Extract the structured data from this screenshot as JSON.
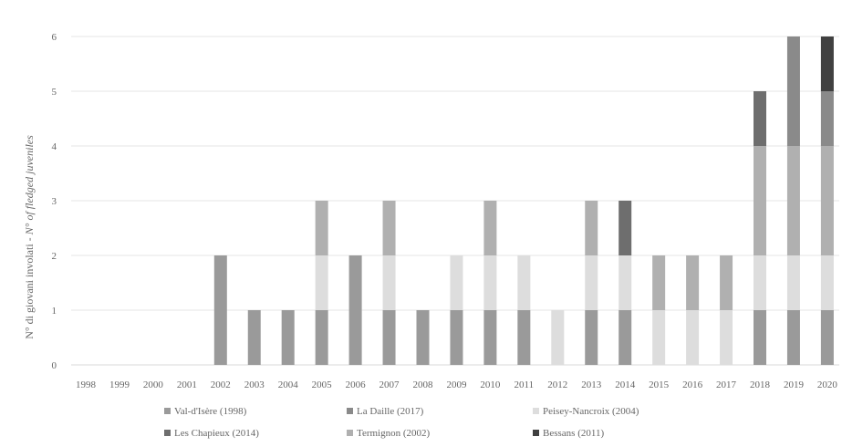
{
  "chart_data": {
    "type": "bar",
    "stacked": true,
    "ylabel_main": "N° di giovani involati - ",
    "ylabel_italic": "N° of fledged juveniles",
    "ylim": [
      0,
      6
    ],
    "yticks": [
      "0",
      "1",
      "2",
      "3",
      "4",
      "5",
      "6"
    ],
    "grid": true,
    "legend_position": "bottom",
    "categories": [
      "1998",
      "1999",
      "2000",
      "2001",
      "2002",
      "2003",
      "2004",
      "2005",
      "2006",
      "2007",
      "2008",
      "2009",
      "2010",
      "2011",
      "2012",
      "2013",
      "2014",
      "2015",
      "2016",
      "2017",
      "2018",
      "2019",
      "2020"
    ],
    "series": [
      {
        "name": "Val-d'Isère (1998)",
        "color": "#9a9a9a",
        "values": [
          0,
          0,
          0,
          0,
          2,
          1,
          1,
          1,
          2,
          1,
          1,
          1,
          1,
          1,
          0,
          1,
          1,
          0,
          0,
          0,
          1,
          1,
          1
        ]
      },
      {
        "name": "Peisey-Nancroix (2004)",
        "color": "#dddddd",
        "values": [
          0,
          0,
          0,
          0,
          0,
          0,
          0,
          1,
          0,
          1,
          0,
          1,
          1,
          1,
          1,
          1,
          1,
          1,
          1,
          1,
          1,
          1,
          1
        ]
      },
      {
        "name": "Termignon (2002)",
        "color": "#b0b0b0",
        "values": [
          0,
          0,
          0,
          0,
          0,
          0,
          0,
          1,
          0,
          1,
          0,
          0,
          1,
          0,
          0,
          1,
          0,
          1,
          1,
          1,
          2,
          2,
          2
        ]
      },
      {
        "name": "La Daille (2017)",
        "color": "#8a8a8a",
        "values": [
          0,
          0,
          0,
          0,
          0,
          0,
          0,
          0,
          0,
          0,
          0,
          0,
          0,
          0,
          0,
          0,
          0,
          0,
          0,
          0,
          0,
          2,
          1
        ]
      },
      {
        "name": "Les Chapieux (2014)",
        "color": "#6e6e6e",
        "values": [
          0,
          0,
          0,
          0,
          0,
          0,
          0,
          0,
          0,
          0,
          0,
          0,
          0,
          0,
          0,
          0,
          1,
          0,
          0,
          0,
          1,
          0,
          0
        ]
      },
      {
        "name": "Bessans (2011)",
        "color": "#404040",
        "values": [
          0,
          0,
          0,
          0,
          0,
          0,
          0,
          0,
          0,
          0,
          0,
          0,
          0,
          0,
          0,
          0,
          0,
          0,
          0,
          0,
          0,
          0,
          1
        ]
      }
    ],
    "legend_order": [
      "Val-d'Isère (1998)",
      "La Daille (2017)",
      "Peisey-Nancroix (2004)",
      "Les Chapieux (2014)",
      "Termignon (2002)",
      "Bessans (2011)"
    ]
  }
}
